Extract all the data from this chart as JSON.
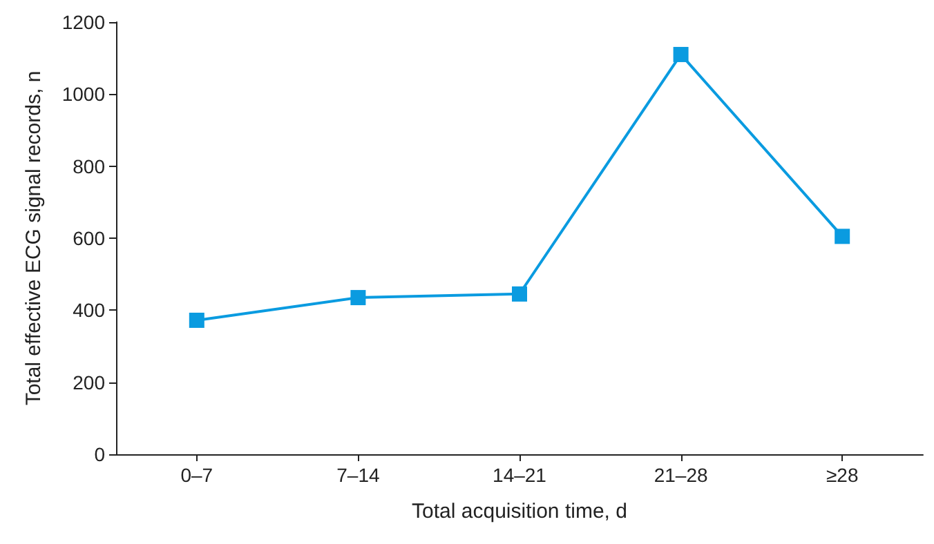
{
  "chart_data": {
    "type": "line",
    "xlabel": "Total acquisition time, d",
    "ylabel": "Total effective ECG signal records, n",
    "categories": [
      "0–7",
      "7–14",
      "14–21",
      "21–28",
      "≥28"
    ],
    "series": [
      {
        "color": "#0a9be0",
        "values": [
          372,
          435,
          445,
          1110,
          605
        ]
      }
    ],
    "ylim": [
      0,
      1200
    ],
    "yticks": [
      0,
      200,
      400,
      600,
      800,
      1000,
      1200
    ],
    "grid": false,
    "marker": "square",
    "line_style": "solid"
  }
}
